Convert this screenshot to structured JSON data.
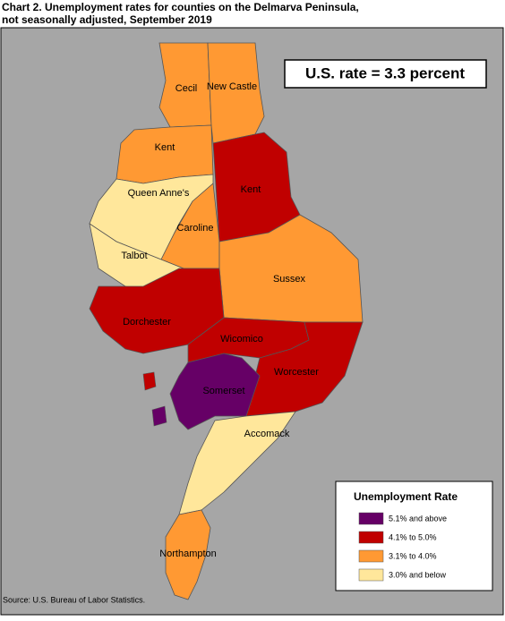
{
  "title_lines": [
    "Chart 2. Unemployment rates for counties on the Delmarva Peninsula,",
    "not seasonally adjusted, September 2019"
  ],
  "callout": "U.S. rate = 3.3 percent",
  "legend": {
    "title": "Unemployment Rate",
    "items": [
      {
        "label": "5.1% and above",
        "color": "#660066"
      },
      {
        "label": "4.1% to 5.0%",
        "color": "#c00000"
      },
      {
        "label": "3.1% to 4.0%",
        "color": "#ff9933"
      },
      {
        "label": "3.0% and below",
        "color": "#ffe79b"
      }
    ]
  },
  "counties": [
    {
      "name": "Cecil",
      "class": 2
    },
    {
      "name": "New Castle",
      "class": 2
    },
    {
      "name": "Kent",
      "class": 2
    },
    {
      "name": "Kent",
      "class": 1
    },
    {
      "name": "Queen Anne's",
      "class": 3
    },
    {
      "name": "Caroline",
      "class": 2
    },
    {
      "name": "Talbot",
      "class": 3
    },
    {
      "name": "Sussex",
      "class": 2
    },
    {
      "name": "Dorchester",
      "class": 1
    },
    {
      "name": "Wicomico",
      "class": 1
    },
    {
      "name": "Worcester",
      "class": 1
    },
    {
      "name": "Somerset",
      "class": 0
    },
    {
      "name": "Accomack",
      "class": 3
    },
    {
      "name": "Northampton",
      "class": 2
    }
  ],
  "source": "Source: U.S. Bureau of Labor Statistics."
}
